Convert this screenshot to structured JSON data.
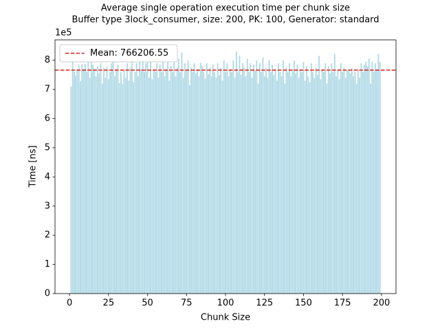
{
  "chart_data": {
    "type": "bar",
    "title": "Average single operation execution time per chunk size",
    "subtitle": "Buffer type 3lock_consumer, size: 200, PK: 100, Generator: standard",
    "x_label": "Chunk Size",
    "y_label": "Time [ns]",
    "y_offset_label": "1e5",
    "color": "#add8e6",
    "mean": 766206.55,
    "mean_label": "Mean: 766206.55",
    "mean_color": "#e41a1c",
    "legend": "upper left",
    "xlim": [
      -9.3,
      209.3
    ],
    "xticks": [
      0,
      25,
      50,
      75,
      100,
      125,
      150,
      175,
      200
    ],
    "ylim": [
      0,
      870000
    ],
    "yticks": [
      {
        "value": 0,
        "label": "0"
      },
      {
        "value": 100000,
        "label": "1"
      },
      {
        "value": 200000,
        "label": "2"
      },
      {
        "value": 300000,
        "label": "3"
      },
      {
        "value": 400000,
        "label": "4"
      },
      {
        "value": 500000,
        "label": "5"
      },
      {
        "value": 600000,
        "label": "6"
      },
      {
        "value": 700000,
        "label": "7"
      },
      {
        "value": 800000,
        "label": "8"
      }
    ],
    "x": [
      1,
      2,
      3,
      4,
      5,
      6,
      7,
      8,
      9,
      10,
      11,
      12,
      13,
      14,
      15,
      16,
      17,
      18,
      19,
      20,
      21,
      22,
      23,
      24,
      25,
      26,
      27,
      28,
      29,
      30,
      31,
      32,
      33,
      34,
      35,
      36,
      37,
      38,
      39,
      40,
      41,
      42,
      43,
      44,
      45,
      46,
      47,
      48,
      49,
      50,
      51,
      52,
      53,
      54,
      55,
      56,
      57,
      58,
      59,
      60,
      61,
      62,
      63,
      64,
      65,
      66,
      67,
      68,
      69,
      70,
      71,
      72,
      73,
      74,
      75,
      76,
      77,
      78,
      79,
      80,
      81,
      82,
      83,
      84,
      85,
      86,
      87,
      88,
      89,
      90,
      91,
      92,
      93,
      94,
      95,
      96,
      97,
      98,
      99,
      100,
      101,
      102,
      103,
      104,
      105,
      106,
      107,
      108,
      109,
      110,
      111,
      112,
      113,
      114,
      115,
      116,
      117,
      118,
      119,
      120,
      121,
      122,
      123,
      124,
      125,
      126,
      127,
      128,
      129,
      130,
      131,
      132,
      133,
      134,
      135,
      136,
      137,
      138,
      139,
      140,
      141,
      142,
      143,
      144,
      145,
      146,
      147,
      148,
      149,
      150,
      151,
      152,
      153,
      154,
      155,
      156,
      157,
      158,
      159,
      160,
      161,
      162,
      163,
      164,
      165,
      166,
      167,
      168,
      169,
      170,
      171,
      172,
      173,
      174,
      175,
      176,
      177,
      178,
      179,
      180,
      181,
      182,
      183,
      184,
      185,
      186,
      187,
      188,
      189,
      190,
      191,
      192,
      193,
      194,
      195,
      196,
      197,
      198,
      199
    ],
    "values": [
      710000,
      800000,
      760000,
      748000,
      770000,
      785000,
      728000,
      787000,
      770000,
      787000,
      760000,
      795000,
      740000,
      800000,
      785000,
      770000,
      745000,
      780000,
      755000,
      790000,
      720000,
      775000,
      740000,
      778000,
      735000,
      760000,
      790000,
      800000,
      745000,
      770000,
      785000,
      722000,
      760000,
      718000,
      770000,
      740000,
      790000,
      730000,
      775000,
      800000,
      725000,
      760000,
      790000,
      745000,
      805000,
      770000,
      800000,
      760000,
      790000,
      795000,
      740000,
      800000,
      735000,
      770000,
      760000,
      790000,
      740000,
      785000,
      760000,
      800000,
      745000,
      770000,
      795000,
      730000,
      780000,
      760000,
      792000,
      745000,
      775000,
      805000,
      760000,
      826000,
      740000,
      790000,
      765000,
      800000,
      715000,
      775000,
      760000,
      790000,
      755000,
      770000,
      745000,
      792000,
      780000,
      760000,
      738000,
      790000,
      752000,
      775000,
      745000,
      785000,
      760000,
      740000,
      790000,
      748000,
      775000,
      730000,
      800000,
      760000,
      790000,
      745000,
      770000,
      760000,
      800000,
      740000,
      830000,
      760000,
      815000,
      750000,
      790000,
      775000,
      745000,
      805000,
      760000,
      790000,
      740000,
      785000,
      765000,
      800000,
      720000,
      790000,
      760000,
      810000,
      745000,
      775000,
      740000,
      800000,
      760000,
      785000,
      750000,
      770000,
      730000,
      790000,
      760000,
      745000,
      800000,
      720000,
      775000,
      760000,
      790000,
      745000,
      770000,
      800000,
      755000,
      785000,
      740000,
      770000,
      760000,
      795000,
      730000,
      780000,
      745000,
      725000,
      790000,
      760000,
      740000,
      775000,
      750000,
      815000,
      735000,
      770000,
      760000,
      790000,
      720000,
      780000,
      755000,
      790000,
      760000,
      822000,
      745000,
      770000,
      735000,
      790000,
      760000,
      775000,
      740000,
      765000,
      770000,
      755000,
      775000,
      745000,
      760000,
      720000,
      770000,
      740000,
      790000,
      760000,
      785000,
      795000,
      780000,
      805000,
      720000,
      795000,
      760000,
      790000,
      770000,
      822000,
      795000
    ]
  }
}
